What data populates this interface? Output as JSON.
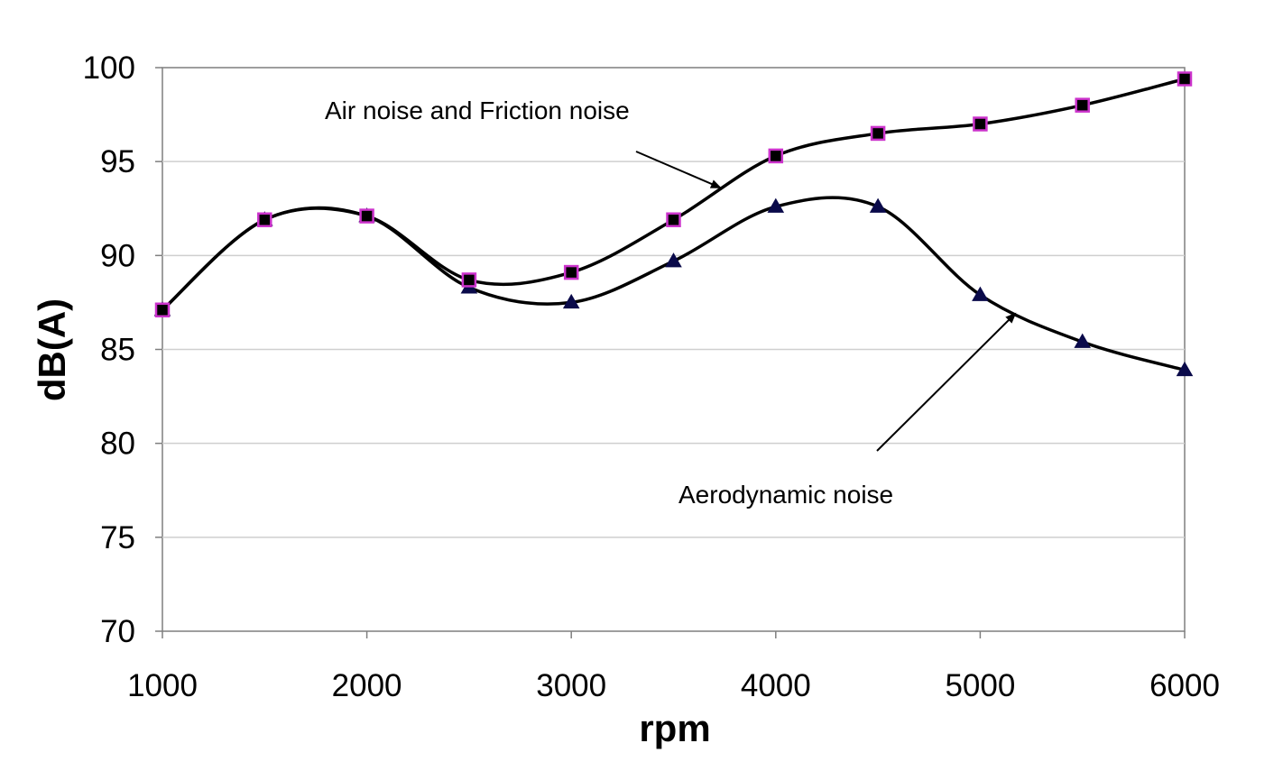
{
  "chart_data": {
    "type": "line",
    "xlabel": "rpm",
    "ylabel": "dB(A)",
    "xlim": [
      1000,
      6000
    ],
    "ylim": [
      70,
      100
    ],
    "xticks": [
      1000,
      2000,
      3000,
      4000,
      5000,
      6000
    ],
    "yticks": [
      70,
      75,
      80,
      85,
      90,
      95,
      100
    ],
    "grid": "horizontal",
    "series": [
      {
        "key": "air_friction",
        "marker": "square",
        "marker_fill": "#000000",
        "marker_edge": "#cc33cc",
        "x": [
          1000,
          1500,
          2000,
          2500,
          3000,
          3500,
          4000,
          4500,
          5000,
          5500,
          6000
        ],
        "y": [
          87.1,
          91.9,
          92.1,
          88.7,
          89.1,
          91.9,
          95.3,
          96.5,
          97.0,
          98.0,
          99.4
        ]
      },
      {
        "key": "aerodynamic",
        "marker": "triangle",
        "marker_fill": "#0a0a4a",
        "marker_edge": "#0a0a4a",
        "x": [
          1000,
          1500,
          2000,
          2500,
          3000,
          3500,
          4000,
          4500,
          5000,
          5500,
          6000
        ],
        "y": [
          87.1,
          91.9,
          92.1,
          88.3,
          87.5,
          89.7,
          92.6,
          92.6,
          87.9,
          85.4,
          83.9
        ]
      }
    ],
    "annotations": [
      {
        "text": "Air noise and Friction noise",
        "points_to": "air_friction"
      },
      {
        "text": "Aerodynamic noise",
        "points_to": "aerodynamic"
      }
    ]
  }
}
